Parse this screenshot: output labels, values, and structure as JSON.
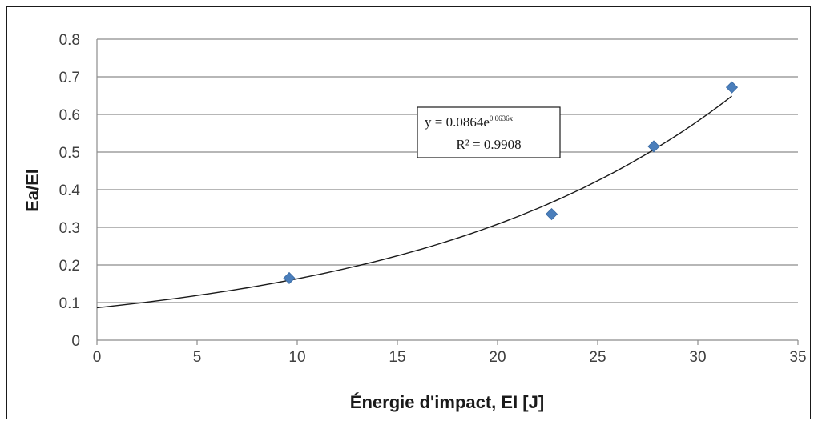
{
  "chart_data": {
    "type": "scatter",
    "xlabel": "Énergie d'impact, EI [J]",
    "ylabel": "Ea/EI",
    "xlim": [
      0,
      35
    ],
    "ylim": [
      0,
      0.8
    ],
    "x_ticks": [
      "0",
      "5",
      "10",
      "15",
      "20",
      "25",
      "30",
      "35"
    ],
    "y_ticks": [
      "0",
      "0.1",
      "0.2",
      "0.3",
      "0.4",
      "0.5",
      "0.6",
      "0.7",
      "0.8"
    ],
    "grid": "horizontal",
    "series": [
      {
        "points": [
          {
            "x": 9.6,
            "y": 0.165
          },
          {
            "x": 22.7,
            "y": 0.335
          },
          {
            "x": 27.8,
            "y": 0.515
          },
          {
            "x": 31.7,
            "y": 0.672
          }
        ],
        "marker": "diamond",
        "color": "#4a7ebb"
      }
    ],
    "trendline": {
      "type": "exponential",
      "a": 0.0864,
      "b": 0.0636,
      "x_range": [
        0,
        31.7
      ],
      "color": "#1a1a1a",
      "equation_label": "y = 0.0864e",
      "equation_exponent": "0.0636x",
      "r2_label": "R² = 0.9908"
    }
  }
}
